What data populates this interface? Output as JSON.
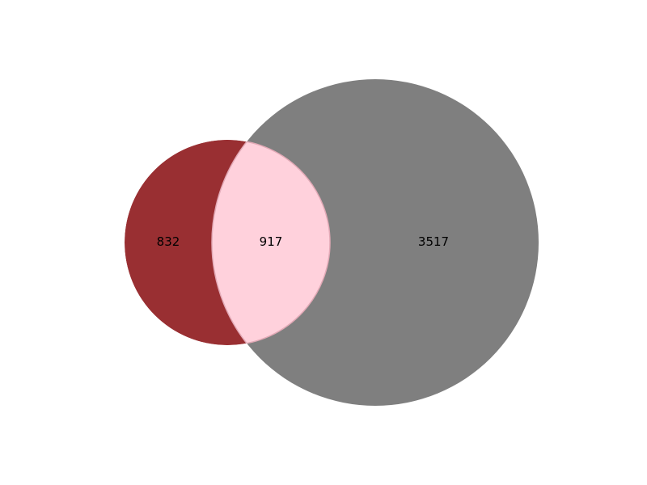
{
  "venn": {
    "sets": [
      {
        "id": "A",
        "color": "#992f32"
      },
      {
        "id": "B",
        "color": "#7f7f7f"
      }
    ],
    "intersection_color": "#ffd1dc",
    "regions": {
      "a_only": "832",
      "a_and_b": "917",
      "b_only": "3517"
    }
  },
  "chart_data": {
    "type": "venn",
    "sets": [
      "A",
      "B"
    ],
    "subsets": {
      "A_only": 832,
      "A_and_B": 917,
      "B_only": 3517
    }
  }
}
